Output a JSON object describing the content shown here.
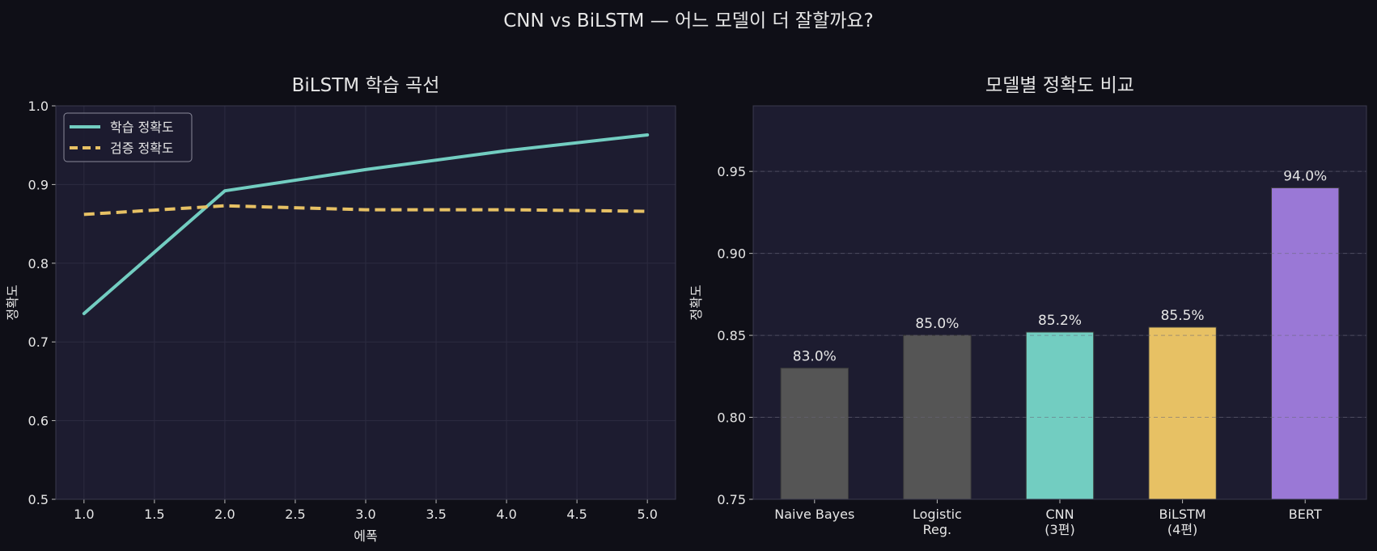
{
  "figure": {
    "suptitle": "CNN vs BiLSTM — 어느 모델이 더 잘할까요?"
  },
  "chart_data": [
    {
      "type": "line",
      "title": "BiLSTM 학습 곡선",
      "xlabel": "에폭",
      "ylabel": "정확도",
      "xlim": [
        0.8,
        5.2
      ],
      "ylim": [
        0.5,
        1.0
      ],
      "x_ticks": [
        "1.0",
        "1.5",
        "2.0",
        "2.5",
        "3.0",
        "3.5",
        "4.0",
        "4.5",
        "5.0"
      ],
      "y_ticks": [
        "0.5",
        "0.6",
        "0.7",
        "0.8",
        "0.9",
        "1.0"
      ],
      "grid": true,
      "legend": "top-left",
      "x": [
        1,
        2,
        3,
        4,
        5
      ],
      "series": [
        {
          "name": "학습 정확도",
          "values": [
            0.736,
            0.892,
            0.919,
            0.943,
            0.963
          ],
          "color": "#72cdc1",
          "style": "solid"
        },
        {
          "name": "검증 정확도",
          "values": [
            0.862,
            0.873,
            0.868,
            0.868,
            0.866
          ],
          "color": "#e7c164",
          "style": "dashed"
        }
      ]
    },
    {
      "type": "bar",
      "title": "모델별 정확도 비교",
      "xlabel": "",
      "ylabel": "정확도",
      "ylim": [
        0.75,
        0.99
      ],
      "y_ticks": [
        "0.75",
        "0.80",
        "0.85",
        "0.90",
        "0.95"
      ],
      "grid": true,
      "categories": [
        [
          "Naive Bayes"
        ],
        [
          "Logistic",
          "Reg."
        ],
        [
          "CNN",
          "(3편)"
        ],
        [
          "BiLSTM",
          "(4편)"
        ],
        [
          "BERT"
        ]
      ],
      "values": [
        0.83,
        0.85,
        0.852,
        0.855,
        0.94
      ],
      "value_labels": [
        "83.0%",
        "85.0%",
        "85.2%",
        "85.5%",
        "94.0%"
      ],
      "colors": [
        "#555555",
        "#555555",
        "#72cdc1",
        "#e7c164",
        "#9a78d6"
      ]
    }
  ]
}
